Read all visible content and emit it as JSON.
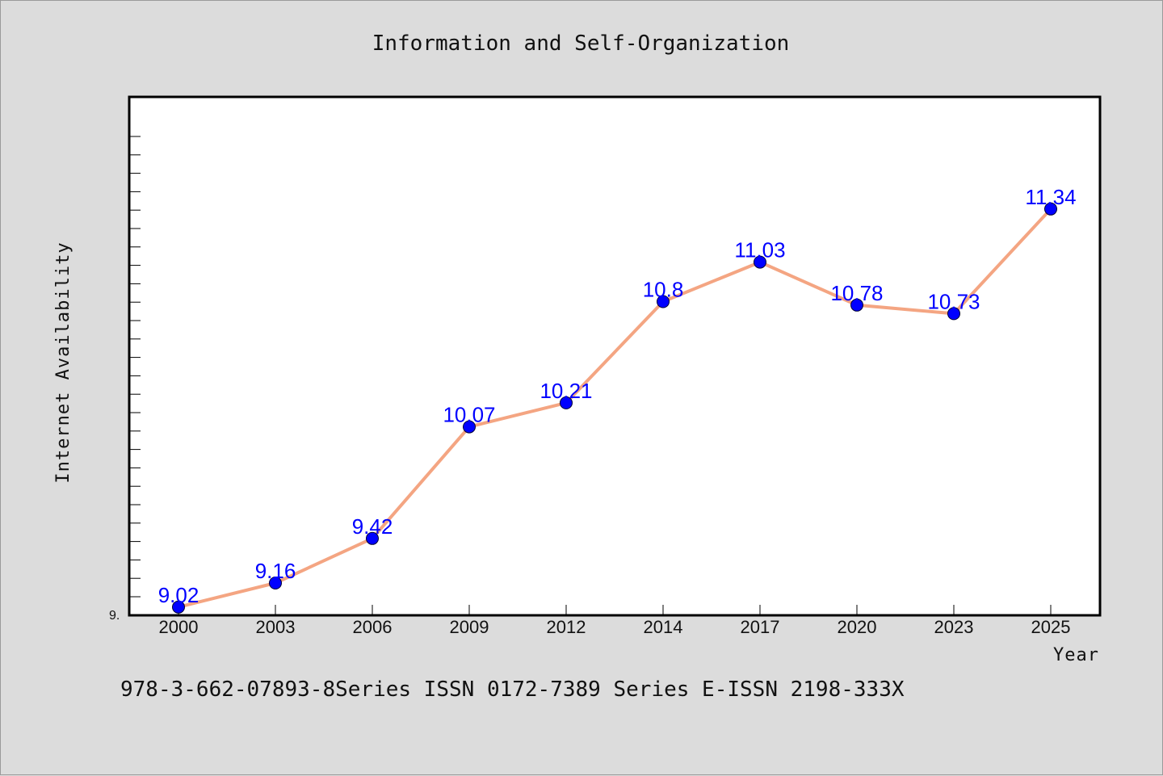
{
  "chart_data": {
    "type": "line",
    "title": "Information and Self-Organization",
    "xlabel": "Year",
    "ylabel": "Internet Availability",
    "categories": [
      "2000",
      "2003",
      "2006",
      "2009",
      "2012",
      "2014",
      "2017",
      "2020",
      "2023",
      "2025"
    ],
    "series": [
      {
        "values": [
          9.02,
          9.16,
          9.42,
          10.07,
          10.21,
          10.8,
          11.03,
          10.78,
          10.73,
          11.34
        ]
      }
    ],
    "data_labels": [
      "9.02",
      "9.16",
      "9.42",
      "10.07",
      "10.21",
      "10.8",
      "11.03",
      "10.78",
      "10.73",
      "11.34"
    ],
    "y_tick_labels": [
      "9."
    ],
    "ylim": [
      9.0,
      11.8
    ],
    "grid": false,
    "legend": "none",
    "colors": {
      "line": "#f4a582",
      "marker": "#0000ff",
      "data_label": "#0000ff",
      "background": "#dcdcdc",
      "plot_bg": "#ffffff"
    }
  },
  "footer_text": "978-3-662-07893-8Series ISSN 0172-7389 Series E-ISSN 2198-333X"
}
